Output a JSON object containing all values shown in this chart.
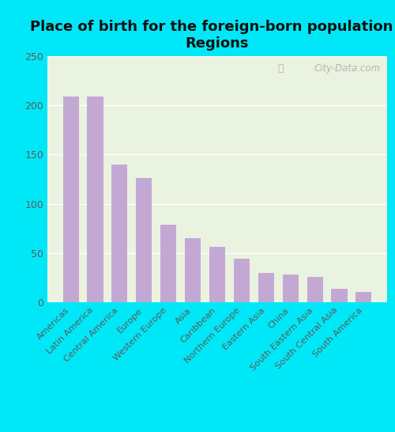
{
  "categories": [
    "Americas",
    "Latin America",
    "Central America",
    "Europe",
    "Western Europe",
    "Asia",
    "Caribbean",
    "Northern Europe",
    "Eastern Asia",
    "China",
    "South Eastern Asia",
    "South Central Asia",
    "South America"
  ],
  "values": [
    209,
    209,
    140,
    126,
    79,
    65,
    56,
    44,
    30,
    28,
    26,
    14,
    11
  ],
  "bar_color": "#c4a8d4",
  "title": "Place of birth for the foreign-born population -\nRegions",
  "title_fontsize": 13,
  "ylim": [
    0,
    250
  ],
  "yticks": [
    0,
    50,
    100,
    150,
    200,
    250
  ],
  "background_outer": "#00e8f8",
  "background_inner": "#eaf2e0",
  "watermark_text": "City-Data.com",
  "grid_color": "#ffffff",
  "tick_label_color": "#5a5a5a",
  "ytick_label_color": "#5a5a5a",
  "title_color": "#111111"
}
